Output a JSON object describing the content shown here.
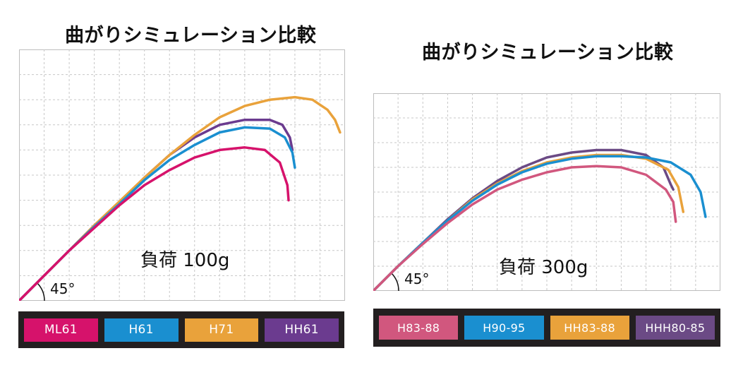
{
  "chart_data": [
    {
      "type": "line",
      "title": "曲がりシミュレーション比較",
      "annotation": "負荷 100g",
      "angle_label": "45°",
      "grid": true,
      "xlim": [
        0,
        13
      ],
      "ylim": [
        0,
        10
      ],
      "series": [
        {
          "name": "ML61",
          "color": "#d6126b",
          "points": [
            [
              0,
              0
            ],
            [
              1,
              1
            ],
            [
              2,
              2
            ],
            [
              3,
              2.9
            ],
            [
              4,
              3.8
            ],
            [
              5,
              4.6
            ],
            [
              6,
              5.2
            ],
            [
              7,
              5.7
            ],
            [
              8,
              6
            ],
            [
              9,
              6.1
            ],
            [
              9.8,
              6
            ],
            [
              10.4,
              5.5
            ],
            [
              10.7,
              4.6
            ],
            [
              10.75,
              4
            ]
          ]
        },
        {
          "name": "H61",
          "color": "#1a8fd0",
          "points": [
            [
              0,
              0
            ],
            [
              1,
              1
            ],
            [
              2,
              2
            ],
            [
              3,
              2.95
            ],
            [
              4,
              3.85
            ],
            [
              5,
              4.8
            ],
            [
              6,
              5.6
            ],
            [
              7,
              6.2
            ],
            [
              8,
              6.7
            ],
            [
              9,
              6.9
            ],
            [
              10,
              6.85
            ],
            [
              10.6,
              6.5
            ],
            [
              10.9,
              5.9
            ],
            [
              11,
              5.3
            ]
          ]
        },
        {
          "name": "H71",
          "color": "#e9a23b",
          "points": [
            [
              0,
              0
            ],
            [
              1,
              1
            ],
            [
              2,
              2
            ],
            [
              3,
              3
            ],
            [
              4,
              3.95
            ],
            [
              5,
              4.9
            ],
            [
              6,
              5.8
            ],
            [
              7,
              6.6
            ],
            [
              8,
              7.3
            ],
            [
              9,
              7.75
            ],
            [
              10,
              8
            ],
            [
              11,
              8.1
            ],
            [
              11.7,
              8
            ],
            [
              12.3,
              7.6
            ],
            [
              12.6,
              7.2
            ],
            [
              12.8,
              6.7
            ]
          ]
        },
        {
          "name": "HH61",
          "color": "#6b3b8f",
          "points": [
            [
              0,
              0
            ],
            [
              1,
              1
            ],
            [
              2,
              2
            ],
            [
              3,
              3
            ],
            [
              4,
              3.9
            ],
            [
              5,
              4.9
            ],
            [
              6,
              5.8
            ],
            [
              7,
              6.5
            ],
            [
              8,
              7.0
            ],
            [
              9,
              7.2
            ],
            [
              10,
              7.2
            ],
            [
              10.5,
              7.0
            ],
            [
              10.8,
              6.5
            ],
            [
              10.9,
              6.0
            ]
          ]
        }
      ]
    },
    {
      "type": "line",
      "title": "曲がりシミュレーション比較",
      "annotation": "負荷 300g",
      "angle_label": "45°",
      "grid": true,
      "xlim": [
        0,
        14
      ],
      "ylim": [
        0,
        8
      ],
      "series": [
        {
          "name": "H83-88",
          "color": "#d1577e",
          "points": [
            [
              0,
              0
            ],
            [
              1,
              1
            ],
            [
              2,
              1.9
            ],
            [
              3,
              2.75
            ],
            [
              4,
              3.5
            ],
            [
              5,
              4.1
            ],
            [
              6,
              4.5
            ],
            [
              7,
              4.8
            ],
            [
              8,
              5.0
            ],
            [
              9,
              5.05
            ],
            [
              10,
              5.0
            ],
            [
              11,
              4.7
            ],
            [
              11.8,
              4.1
            ],
            [
              12.1,
              3.6
            ],
            [
              12.2,
              2.8
            ]
          ]
        },
        {
          "name": "H90-95",
          "color": "#1a8fd0",
          "points": [
            [
              0,
              0
            ],
            [
              1,
              1
            ],
            [
              2,
              1.95
            ],
            [
              3,
              2.85
            ],
            [
              4,
              3.65
            ],
            [
              5,
              4.3
            ],
            [
              6,
              4.8
            ],
            [
              7,
              5.15
            ],
            [
              8,
              5.35
            ],
            [
              9,
              5.45
            ],
            [
              10,
              5.45
            ],
            [
              11,
              5.4
            ],
            [
              12,
              5.2
            ],
            [
              12.8,
              4.7
            ],
            [
              13.2,
              4
            ],
            [
              13.4,
              3
            ]
          ]
        },
        {
          "name": "HH83-88",
          "color": "#e9a23b",
          "points": [
            [
              0,
              0
            ],
            [
              1,
              1
            ],
            [
              2,
              1.95
            ],
            [
              3,
              2.85
            ],
            [
              4,
              3.7
            ],
            [
              5,
              4.35
            ],
            [
              6,
              4.85
            ],
            [
              7,
              5.2
            ],
            [
              8,
              5.4
            ],
            [
              9,
              5.5
            ],
            [
              10,
              5.5
            ],
            [
              11,
              5.35
            ],
            [
              11.9,
              4.9
            ],
            [
              12.3,
              4.2
            ],
            [
              12.5,
              3.2
            ]
          ]
        },
        {
          "name": "HHH80-85",
          "color": "#6b4a85",
          "points": [
            [
              0,
              0
            ],
            [
              1,
              1
            ],
            [
              2,
              1.95
            ],
            [
              3,
              2.9
            ],
            [
              4,
              3.75
            ],
            [
              5,
              4.45
            ],
            [
              6,
              5.0
            ],
            [
              7,
              5.4
            ],
            [
              8,
              5.6
            ],
            [
              9,
              5.7
            ],
            [
              10,
              5.7
            ],
            [
              11,
              5.5
            ],
            [
              11.7,
              5.0
            ],
            [
              12.0,
              4.3
            ],
            [
              12.1,
              4.1
            ]
          ]
        }
      ]
    }
  ]
}
